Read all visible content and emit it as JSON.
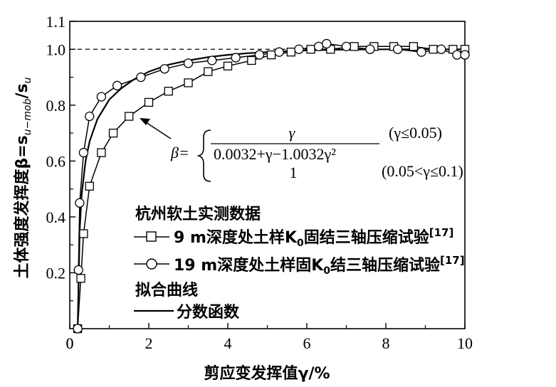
{
  "chart_data": {
    "type": "line",
    "xlabel": "剪应变发挥值γ/%",
    "ylabel": "土体强度发挥度β=s",
    "ylabel_sub1": "u−mob",
    "ylabel_mid": "/s",
    "ylabel_sub2": "u",
    "xlim": [
      0,
      10
    ],
    "ylim": [
      0,
      1.1
    ],
    "xticks": [
      "0",
      "2",
      "4",
      "6",
      "8",
      "10"
    ],
    "yticks": [
      "0.2",
      "0.4",
      "0.6",
      "0.8",
      "1.0",
      "1.1"
    ],
    "reference_line": {
      "y": 1.0,
      "style": "dashed"
    },
    "legend": {
      "title_measured": "杭州软土实测数据",
      "title_fit": "拟合曲线",
      "placement": "center-right"
    },
    "equation": {
      "lhs": "β=",
      "numerator": "γ",
      "denominator": "0.0032+γ−1.0032γ²",
      "second": "1",
      "cond1": "(γ≤0.05)",
      "cond2": "(0.05<γ≤0.1)"
    },
    "series": [
      {
        "name": "9 m深度处土样K₀固结三轴压缩试验",
        "name_main": "9 m深度处土样K",
        "name_sub": "0",
        "name_tail": "固结三轴压缩试验",
        "name_ref": "[17]",
        "marker": "square",
        "x": [
          0.2,
          0.28,
          0.35,
          0.5,
          0.8,
          1.1,
          1.5,
          2.0,
          2.5,
          3.0,
          3.5,
          4.0,
          4.6,
          5.1,
          5.6,
          6.1,
          6.6,
          7.2,
          7.7,
          8.2,
          8.7,
          9.2,
          9.7,
          10.0
        ],
        "y": [
          0.0,
          0.18,
          0.34,
          0.51,
          0.63,
          0.7,
          0.76,
          0.81,
          0.85,
          0.88,
          0.92,
          0.94,
          0.96,
          0.98,
          0.99,
          1.0,
          1.0,
          1.01,
          1.01,
          1.01,
          1.01,
          1.0,
          1.0,
          1.0
        ]
      },
      {
        "name": "19 m深度处土样固K₀结三轴压缩试验",
        "name_main": "19 m深度处土样固K",
        "name_sub": "0",
        "name_tail": "结三轴压缩试验",
        "name_ref": "[17]",
        "marker": "circle",
        "x": [
          0.2,
          0.22,
          0.25,
          0.35,
          0.5,
          0.8,
          1.2,
          1.8,
          2.4,
          3.0,
          3.6,
          4.2,
          4.8,
          5.3,
          5.8,
          6.3,
          6.5,
          7.0,
          7.6,
          8.3,
          8.9,
          9.4,
          9.8,
          10.0
        ],
        "y": [
          0.0,
          0.21,
          0.45,
          0.63,
          0.76,
          0.83,
          0.87,
          0.9,
          0.93,
          0.95,
          0.96,
          0.97,
          0.98,
          0.99,
          1.0,
          1.01,
          1.02,
          1.01,
          1.0,
          1.0,
          0.99,
          1.0,
          0.98,
          0.98
        ]
      },
      {
        "name": "分数函数",
        "marker": "none",
        "style": "solid",
        "x": [
          0.2,
          0.25,
          0.3,
          0.4,
          0.5,
          0.7,
          1.0,
          1.3,
          1.6,
          2.0,
          2.5,
          3.0,
          3.5,
          4.0,
          4.5,
          5.0,
          6.0,
          7.0,
          8.0,
          9.0,
          10.0
        ],
        "y": [
          0.0,
          0.35,
          0.48,
          0.6,
          0.67,
          0.75,
          0.82,
          0.86,
          0.89,
          0.92,
          0.945,
          0.96,
          0.972,
          0.98,
          0.986,
          0.99,
          0.996,
          0.999,
          1.0,
          1.0,
          1.0
        ]
      }
    ]
  }
}
